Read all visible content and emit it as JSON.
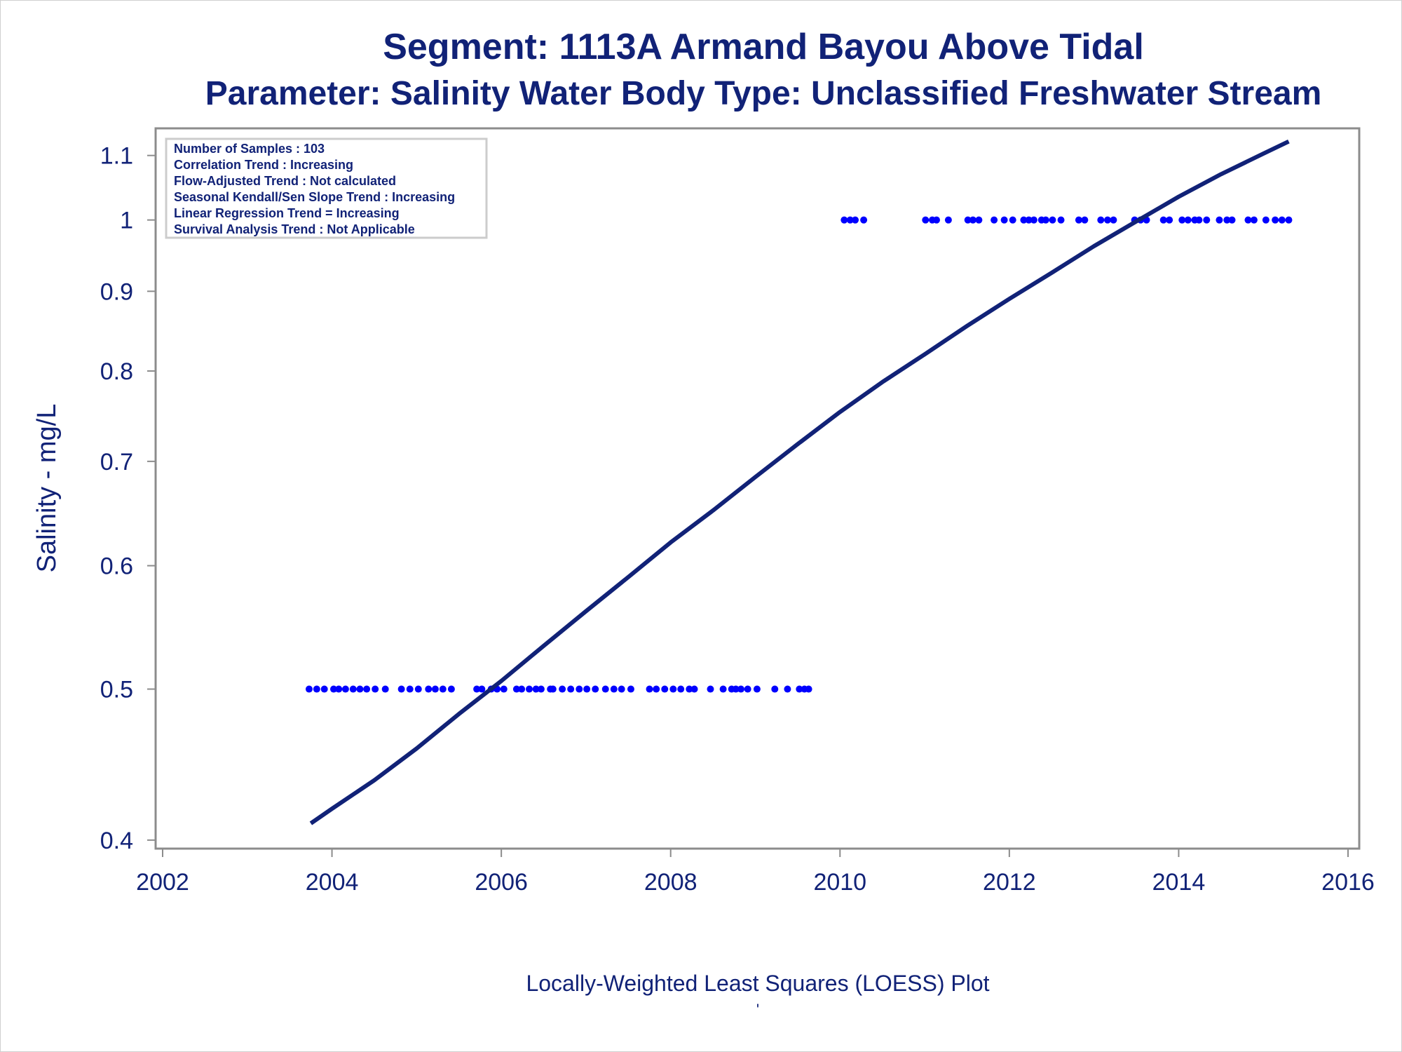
{
  "chart_data": {
    "type": "scatter",
    "title": "Segment: 1113A  Armand Bayou Above Tidal",
    "subtitle": "Parameter: Salinity   Water Body Type: Unclassified Freshwater Stream",
    "xlabel": "Locally-Weighted Least Squares (LOESS) Plot",
    "ylabel": "Salinity - mg/L",
    "footnote": "'",
    "x_scale": "linear",
    "y_scale": "log",
    "xlim": [
      2002,
      2016
    ],
    "ylim": [
      0.395,
      1.145
    ],
    "x_ticks": [
      2002,
      2004,
      2006,
      2008,
      2010,
      2012,
      2014,
      2016
    ],
    "y_ticks": [
      0.4,
      0.5,
      0.6,
      0.7,
      0.8,
      0.9,
      1.0,
      1.1
    ],
    "y_tick_labels": [
      "0.4",
      "0.5",
      "0.6",
      "0.7",
      "0.8",
      "0.9",
      "1",
      "1.1"
    ],
    "grid": false,
    "legend_placement": "top-left",
    "stats_box": [
      "Number of Samples : 103",
      "Correlation Trend : Increasing",
      "Flow-Adjusted Trend : Not calculated",
      "Seasonal Kendall/Sen Slope Trend : Increasing",
      "Linear Regression Trend = Increasing",
      "Survival Analysis Trend : Not Applicable"
    ],
    "colors": {
      "points": "#0000ff",
      "curve": "#112277",
      "text": "#112277",
      "frame": "#8c8c8c"
    },
    "series": [
      {
        "kind": "scatter",
        "points": [
          [
            2003.73,
            0.5
          ],
          [
            2003.82,
            0.5
          ],
          [
            2003.91,
            0.5
          ],
          [
            2004.02,
            0.5
          ],
          [
            2004.08,
            0.5
          ],
          [
            2004.16,
            0.5
          ],
          [
            2004.25,
            0.5
          ],
          [
            2004.33,
            0.5
          ],
          [
            2004.41,
            0.5
          ],
          [
            2004.51,
            0.5
          ],
          [
            2004.63,
            0.5
          ],
          [
            2004.82,
            0.5
          ],
          [
            2004.92,
            0.5
          ],
          [
            2005.02,
            0.5
          ],
          [
            2005.14,
            0.5
          ],
          [
            2005.22,
            0.5
          ],
          [
            2005.31,
            0.5
          ],
          [
            2005.41,
            0.5
          ],
          [
            2005.71,
            0.5
          ],
          [
            2005.77,
            0.5
          ],
          [
            2005.88,
            0.5
          ],
          [
            2005.95,
            0.5
          ],
          [
            2006.03,
            0.5
          ],
          [
            2006.18,
            0.5
          ],
          [
            2006.24,
            0.5
          ],
          [
            2006.33,
            0.5
          ],
          [
            2006.41,
            0.5
          ],
          [
            2006.47,
            0.5
          ],
          [
            2006.58,
            0.5
          ],
          [
            2006.61,
            0.5
          ],
          [
            2006.72,
            0.5
          ],
          [
            2006.82,
            0.5
          ],
          [
            2006.92,
            0.5
          ],
          [
            2007.01,
            0.5
          ],
          [
            2007.11,
            0.5
          ],
          [
            2007.23,
            0.5
          ],
          [
            2007.33,
            0.5
          ],
          [
            2007.42,
            0.5
          ],
          [
            2007.53,
            0.5
          ],
          [
            2007.75,
            0.5
          ],
          [
            2007.83,
            0.5
          ],
          [
            2007.93,
            0.5
          ],
          [
            2008.03,
            0.5
          ],
          [
            2008.12,
            0.5
          ],
          [
            2008.22,
            0.5
          ],
          [
            2008.28,
            0.5
          ],
          [
            2008.47,
            0.5
          ],
          [
            2008.62,
            0.5
          ],
          [
            2008.72,
            0.5
          ],
          [
            2008.77,
            0.5
          ],
          [
            2008.83,
            0.5
          ],
          [
            2008.91,
            0.5
          ],
          [
            2009.02,
            0.5
          ],
          [
            2009.23,
            0.5
          ],
          [
            2009.38,
            0.5
          ],
          [
            2009.52,
            0.5
          ],
          [
            2009.58,
            0.5
          ],
          [
            2009.63,
            0.5
          ],
          [
            2010.05,
            1.0
          ],
          [
            2010.12,
            1.0
          ],
          [
            2010.18,
            1.0
          ],
          [
            2010.28,
            1.0
          ],
          [
            2011.01,
            1.0
          ],
          [
            2011.09,
            1.0
          ],
          [
            2011.14,
            1.0
          ],
          [
            2011.28,
            1.0
          ],
          [
            2011.51,
            1.0
          ],
          [
            2011.57,
            1.0
          ],
          [
            2011.64,
            1.0
          ],
          [
            2011.82,
            1.0
          ],
          [
            2011.94,
            1.0
          ],
          [
            2012.04,
            1.0
          ],
          [
            2012.17,
            1.0
          ],
          [
            2012.23,
            1.0
          ],
          [
            2012.29,
            1.0
          ],
          [
            2012.38,
            1.0
          ],
          [
            2012.43,
            1.0
          ],
          [
            2012.51,
            1.0
          ],
          [
            2012.61,
            1.0
          ],
          [
            2012.82,
            1.0
          ],
          [
            2012.89,
            1.0
          ],
          [
            2013.08,
            1.0
          ],
          [
            2013.16,
            1.0
          ],
          [
            2013.23,
            1.0
          ],
          [
            2013.48,
            1.0
          ],
          [
            2013.55,
            1.0
          ],
          [
            2013.62,
            1.0
          ],
          [
            2013.82,
            1.0
          ],
          [
            2013.89,
            1.0
          ],
          [
            2014.04,
            1.0
          ],
          [
            2014.11,
            1.0
          ],
          [
            2014.19,
            1.0
          ],
          [
            2014.24,
            1.0
          ],
          [
            2014.33,
            1.0
          ],
          [
            2014.48,
            1.0
          ],
          [
            2014.57,
            1.0
          ],
          [
            2014.63,
            1.0
          ],
          [
            2014.82,
            1.0
          ],
          [
            2014.89,
            1.0
          ],
          [
            2015.03,
            1.0
          ],
          [
            2015.14,
            1.0
          ],
          [
            2015.22,
            1.0
          ],
          [
            2015.3,
            1.0
          ]
        ]
      },
      {
        "kind": "line",
        "points": [
          [
            2003.75,
            0.41
          ],
          [
            2004.0,
            0.419
          ],
          [
            2004.5,
            0.437
          ],
          [
            2005.0,
            0.458
          ],
          [
            2005.5,
            0.482
          ],
          [
            2006.0,
            0.506
          ],
          [
            2006.5,
            0.533
          ],
          [
            2007.0,
            0.561
          ],
          [
            2007.5,
            0.59
          ],
          [
            2008.0,
            0.621
          ],
          [
            2008.5,
            0.651
          ],
          [
            2009.0,
            0.684
          ],
          [
            2009.5,
            0.718
          ],
          [
            2010.0,
            0.753
          ],
          [
            2010.5,
            0.787
          ],
          [
            2011.0,
            0.82
          ],
          [
            2011.5,
            0.855
          ],
          [
            2012.0,
            0.89
          ],
          [
            2012.5,
            0.925
          ],
          [
            2013.0,
            0.962
          ],
          [
            2013.5,
            0.998
          ],
          [
            2014.0,
            1.035
          ],
          [
            2014.5,
            1.07
          ],
          [
            2015.0,
            1.103
          ],
          [
            2015.3,
            1.123
          ]
        ]
      }
    ]
  }
}
